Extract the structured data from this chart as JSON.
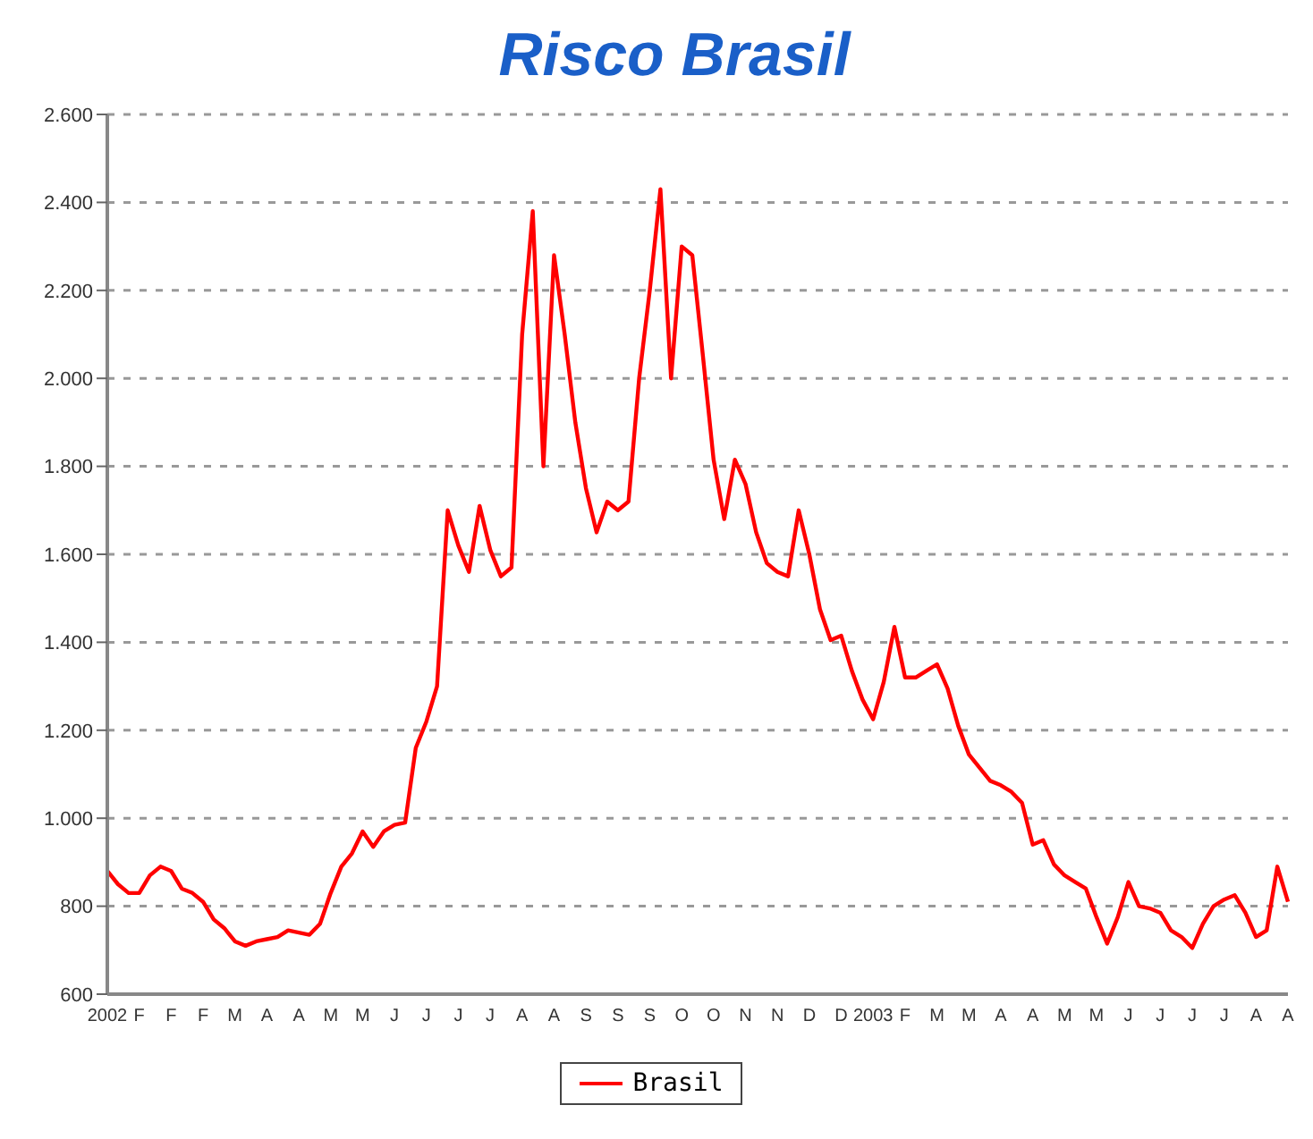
{
  "chart_data": {
    "type": "line",
    "title": "Risco Brasil",
    "categories": [
      "2002",
      null,
      null,
      "F",
      null,
      null,
      "F",
      null,
      null,
      "F",
      null,
      null,
      "M",
      null,
      null,
      "A",
      null,
      null,
      "A",
      null,
      null,
      "M",
      null,
      null,
      "M",
      null,
      null,
      "J",
      null,
      null,
      "J",
      null,
      null,
      "J",
      null,
      null,
      "J",
      null,
      null,
      "A",
      null,
      null,
      "A",
      null,
      null,
      "S",
      null,
      null,
      "S",
      null,
      null,
      "S",
      null,
      null,
      "O",
      null,
      null,
      "O",
      null,
      null,
      "N",
      null,
      null,
      "N",
      null,
      null,
      "D",
      null,
      null,
      "D",
      null,
      null,
      "2003",
      null,
      null,
      "F",
      null,
      null,
      "M",
      null,
      null,
      "M",
      null,
      null,
      "A",
      null,
      null,
      "A",
      null,
      null,
      "M",
      null,
      null,
      "M",
      null,
      null,
      "J",
      null,
      null,
      "J",
      null,
      null,
      "J",
      null,
      null,
      "J",
      null,
      null,
      "A",
      null,
      null,
      "A"
    ],
    "series": [
      {
        "name": "Brasil",
        "color": "#ff0000",
        "values": [
          880,
          850,
          830,
          830,
          870,
          890,
          880,
          840,
          830,
          810,
          770,
          750,
          720,
          710,
          720,
          725,
          730,
          745,
          740,
          735,
          760,
          830,
          890,
          920,
          970,
          935,
          970,
          985,
          990,
          1160,
          1220,
          1300,
          1700,
          1620,
          1560,
          1710,
          1610,
          1550,
          1570,
          2100,
          2380,
          1800,
          2280,
          2100,
          1900,
          1750,
          1650,
          1720,
          1700,
          1720,
          2000,
          2200,
          2430,
          2000,
          2300,
          2280,
          2050,
          1815,
          1680,
          1815,
          1760,
          1650,
          1580,
          1560,
          1550,
          1700,
          1600,
          1475,
          1405,
          1415,
          1335,
          1270,
          1225,
          1310,
          1435,
          1320,
          1320,
          1335,
          1350,
          1295,
          1210,
          1145,
          1115,
          1085,
          1075,
          1060,
          1035,
          940,
          950,
          895,
          870,
          855,
          840,
          775,
          715,
          775,
          855,
          800,
          795,
          785,
          745,
          730,
          705,
          760,
          800,
          815,
          825,
          785,
          730,
          745,
          890,
          810
        ]
      }
    ],
    "ylim": [
      600,
      2600
    ],
    "yticks": [
      600,
      800,
      {
        "value": 1000,
        "label": "1.000"
      },
      {
        "value": 1200,
        "label": "1.200"
      },
      {
        "value": 1400,
        "label": "1.400"
      },
      {
        "value": 1600,
        "label": "1.600"
      },
      {
        "value": 1800,
        "label": "1.800"
      },
      {
        "value": 2000,
        "label": "2.000"
      },
      {
        "value": 2200,
        "label": "2.200"
      },
      {
        "value": 2400,
        "label": "2.400"
      },
      {
        "value": 2600,
        "label": "2.600"
      }
    ],
    "grid": "y",
    "legend": "bottom",
    "marker": "none",
    "line_style": "solid"
  }
}
